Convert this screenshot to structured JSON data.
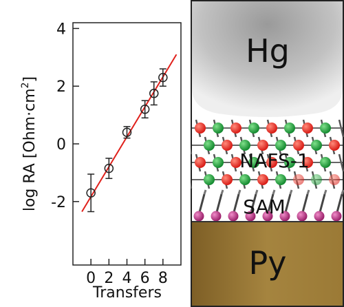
{
  "chart_data": {
    "type": "scatter",
    "xlabel": "Transfers",
    "ylabel_main": "log RA [Ohm",
    "ylabel_dot": "·",
    "ylabel_unit": "cm",
    "ylabel_sup": "2",
    "ylabel_close": "]",
    "xlim": [
      -2,
      10
    ],
    "ylim": [
      -4.2,
      4.2
    ],
    "xticks": [
      0,
      2,
      4,
      6,
      8
    ],
    "yticks": [
      -2,
      0,
      2,
      4
    ],
    "grid": false,
    "series": [
      {
        "marker": "open-circle",
        "points": [
          {
            "x": 0,
            "y": -1.7,
            "err": 0.65
          },
          {
            "x": 2,
            "y": -0.85,
            "err": 0.35
          },
          {
            "x": 4,
            "y": 0.4,
            "err": 0.2
          },
          {
            "x": 6,
            "y": 1.2,
            "err": 0.3
          },
          {
            "x": 7,
            "y": 1.75,
            "err": 0.4
          },
          {
            "x": 8,
            "y": 2.3,
            "err": 0.3
          }
        ]
      }
    ],
    "fit_line": {
      "x": [
        -1,
        9.5
      ],
      "y": [
        -2.35,
        3.1
      ],
      "color": "#e0201b"
    }
  },
  "schematic": {
    "top_label": "Hg",
    "middle_label": "NAFS-1",
    "sam_label": "SAM",
    "bottom_label": "Py",
    "colors": {
      "hg": "#a8a8a8",
      "py": "#9a7a3c",
      "atom_red": "#e8231f",
      "atom_green": "#1d9a3a",
      "atom_pink": "#b0307a"
    }
  }
}
